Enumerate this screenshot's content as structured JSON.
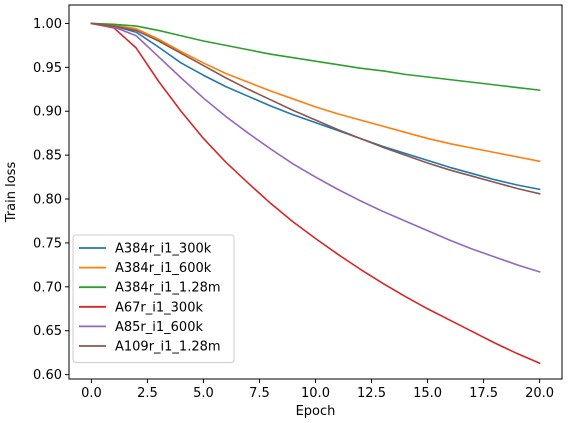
{
  "chart_data": {
    "type": "line",
    "title": "",
    "xlabel": "Epoch",
    "ylabel": "Train loss",
    "xlim": [
      -1.0,
      21.0
    ],
    "ylim": [
      0.595,
      1.021
    ],
    "xticks": [
      0.0,
      2.5,
      5.0,
      7.5,
      10.0,
      12.5,
      15.0,
      17.5,
      20.0
    ],
    "xtick_labels": [
      "0.0",
      "2.5",
      "5.0",
      "7.5",
      "10.0",
      "12.5",
      "15.0",
      "17.5",
      "20.0"
    ],
    "yticks": [
      0.6,
      0.65,
      0.7,
      0.75,
      0.8,
      0.85,
      0.9,
      0.95,
      1.0
    ],
    "ytick_labels": [
      "0.60",
      "0.65",
      "0.70",
      "0.75",
      "0.80",
      "0.85",
      "0.90",
      "0.95",
      "1.00"
    ],
    "grid": false,
    "legend_position": "lower-left",
    "x": [
      0,
      1,
      2,
      3,
      4,
      5,
      6,
      7,
      8,
      9,
      10,
      11,
      12,
      13,
      14,
      15,
      16,
      17,
      18,
      19,
      20
    ],
    "series": [
      {
        "name": "A384r_i1_300k",
        "color": "#1f77b4",
        "values": [
          1.0,
          0.997,
          0.99,
          0.973,
          0.955,
          0.941,
          0.928,
          0.917,
          0.906,
          0.896,
          0.887,
          0.878,
          0.869,
          0.86,
          0.852,
          0.844,
          0.836,
          0.829,
          0.822,
          0.816,
          0.811
        ]
      },
      {
        "name": "A384r_i1_600k",
        "color": "#ff7f0e",
        "values": [
          1.0,
          0.998,
          0.994,
          0.982,
          0.968,
          0.955,
          0.943,
          0.933,
          0.923,
          0.914,
          0.905,
          0.897,
          0.89,
          0.883,
          0.876,
          0.869,
          0.863,
          0.858,
          0.853,
          0.848,
          0.843
        ]
      },
      {
        "name": "A384r_i1_1.28m",
        "color": "#2ca02c",
        "values": [
          1.0,
          0.999,
          0.997,
          0.992,
          0.986,
          0.98,
          0.975,
          0.97,
          0.965,
          0.961,
          0.957,
          0.953,
          0.949,
          0.946,
          0.942,
          0.939,
          0.936,
          0.933,
          0.93,
          0.927,
          0.924
        ]
      },
      {
        "name": "A67r_i1_300k",
        "color": "#d62728",
        "values": [
          1.0,
          0.995,
          0.972,
          0.934,
          0.9,
          0.869,
          0.842,
          0.818,
          0.795,
          0.774,
          0.755,
          0.737,
          0.72,
          0.704,
          0.689,
          0.675,
          0.662,
          0.649,
          0.636,
          0.624,
          0.613
        ]
      },
      {
        "name": "A85r_i1_600k",
        "color": "#9467bd",
        "values": [
          1.0,
          0.996,
          0.986,
          0.962,
          0.938,
          0.915,
          0.894,
          0.875,
          0.857,
          0.84,
          0.825,
          0.811,
          0.798,
          0.786,
          0.775,
          0.764,
          0.753,
          0.743,
          0.734,
          0.725,
          0.717
        ]
      },
      {
        "name": "A109r_i1_1.28m",
        "color": "#8c564b",
        "values": [
          1.0,
          0.997,
          0.992,
          0.98,
          0.966,
          0.952,
          0.938,
          0.925,
          0.913,
          0.901,
          0.89,
          0.879,
          0.869,
          0.859,
          0.85,
          0.841,
          0.833,
          0.826,
          0.819,
          0.812,
          0.806
        ]
      }
    ]
  }
}
